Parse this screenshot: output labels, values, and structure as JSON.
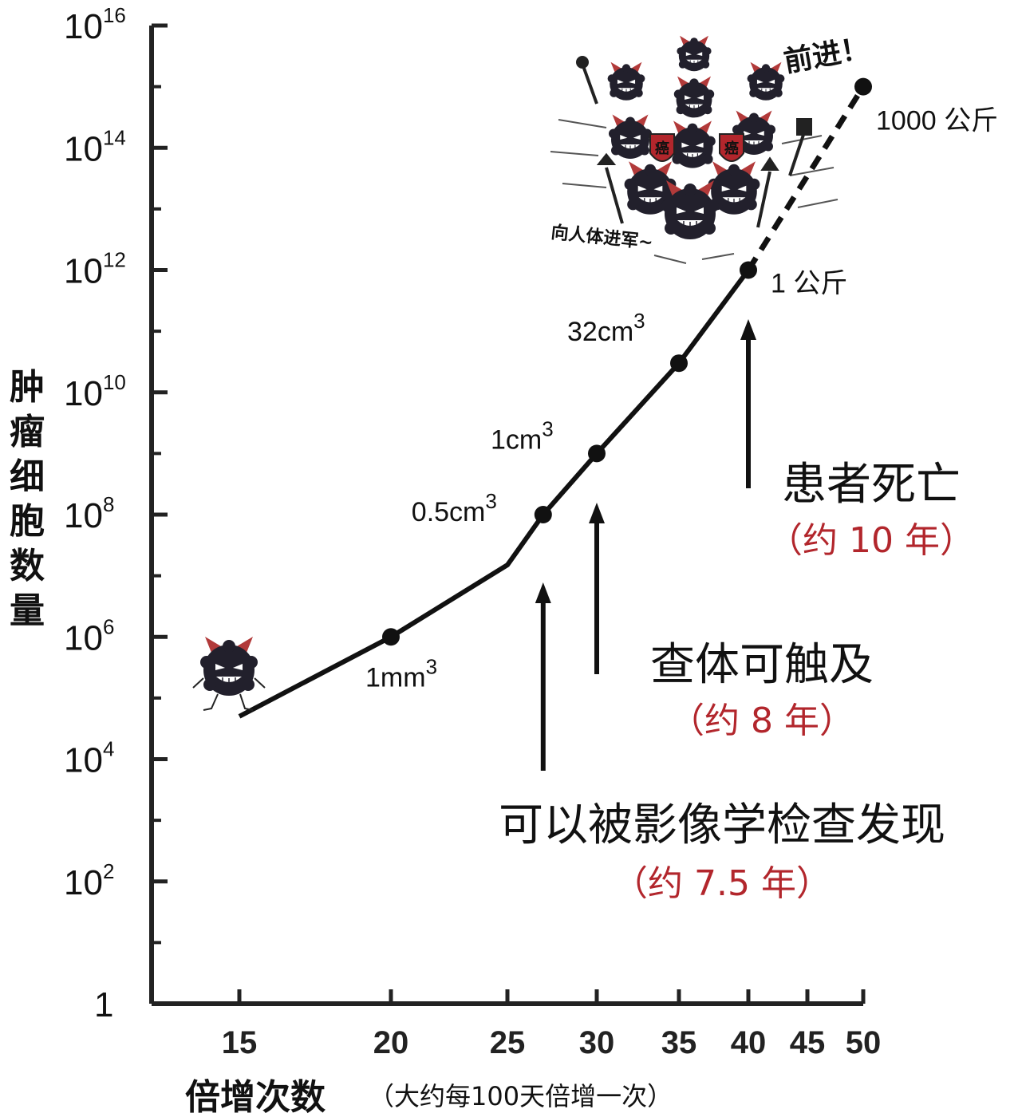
{
  "chart_data": {
    "type": "line",
    "y_axis": {
      "title": "肿瘤细胞数量",
      "scale": "log",
      "ylim": [
        1,
        1e+16
      ],
      "ticks": [
        {
          "value": 1,
          "base": "1",
          "exp": ""
        },
        {
          "value": 100,
          "base": "10",
          "exp": "2"
        },
        {
          "value": 10000,
          "base": "10",
          "exp": "4"
        },
        {
          "value": 1000000,
          "base": "10",
          "exp": "6"
        },
        {
          "value": 100000000,
          "base": "10",
          "exp": "8"
        },
        {
          "value": 10000000000,
          "base": "10",
          "exp": "10"
        },
        {
          "value": 1000000000000,
          "base": "10",
          "exp": "12"
        },
        {
          "value": 100000000000000,
          "base": "10",
          "exp": "14"
        },
        {
          "value": 10000000000000000,
          "base": "10",
          "exp": "16"
        }
      ]
    },
    "x_axis": {
      "title": "倍增次数",
      "note": "（大约每100天倍增一次）",
      "xlim": [
        12,
        50
      ],
      "ticks": [
        "15",
        "20",
        "25",
        "30",
        "35",
        "40",
        "45",
        "50"
      ]
    },
    "series": [
      {
        "points": [
          {
            "x": 15,
            "y": 50000,
            "marker": false
          },
          {
            "x": 20,
            "y": 1000000,
            "marker": true
          },
          {
            "x": 25,
            "y": 15000000,
            "marker": false
          },
          {
            "x": 27,
            "y": 100000000,
            "marker": true
          },
          {
            "x": 30,
            "y": 1000000000,
            "marker": true
          },
          {
            "x": 35,
            "y": 30000000000,
            "marker": true
          },
          {
            "x": 40,
            "y": 1000000000000,
            "marker": true
          },
          {
            "x": 50,
            "y": 1000000000000000,
            "marker": true
          }
        ]
      }
    ],
    "point_labels": [
      {
        "x": 20,
        "y": 1000000,
        "text": "1mm",
        "sup": "3"
      },
      {
        "x": 27,
        "y": 100000000,
        "text": "0.5cm",
        "sup": "3"
      },
      {
        "x": 30,
        "y": 1000000000,
        "text": "1cm",
        "sup": "3"
      },
      {
        "x": 35,
        "y": 30000000000,
        "text": "32cm",
        "sup": "3"
      },
      {
        "x": 40,
        "y": 1000000000000,
        "text": "1 公斤",
        "sup": ""
      },
      {
        "x": 50,
        "y": 1000000000000000,
        "text": "1000 公斤",
        "sup": ""
      }
    ],
    "annotations": [
      {
        "x": 27,
        "label": "可以被影像学检查发现",
        "years": "（约 7.5 年）"
      },
      {
        "x": 30,
        "label": "查体可触及",
        "years": "（约 8 年）"
      },
      {
        "x": 40,
        "label": "患者死亡",
        "years": "（约 10 年）"
      }
    ],
    "grid": false,
    "legend": "none"
  },
  "illustration": {
    "icon": "cancer-cell-monster-icon",
    "speech_forward": "前进！",
    "speech_march": "向人体进军~",
    "shield_text": "癌",
    "colors": {
      "monster_body": "#22202c",
      "horn": "#b23a3a",
      "shield": "#b2262c",
      "annotation_red": "#b2262c"
    }
  }
}
